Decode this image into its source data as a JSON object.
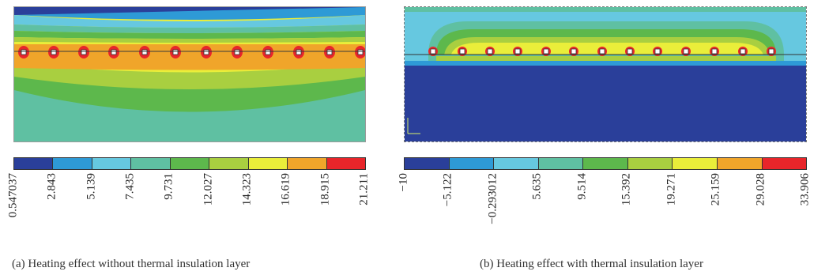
{
  "panels": {
    "a": {
      "caption": "(a)  Heating effect without thermal insulation layer",
      "colorbar_ticks": [
        "0.547037",
        "2.843",
        "5.139",
        "7.435",
        "9.731",
        "12.027",
        "14.323",
        "16.619",
        "18.915",
        "21.211"
      ],
      "colorbar_colors": [
        "#2a3f9a",
        "#2e9ad6",
        "#66c8e0",
        "#5fc0a2",
        "#5db84c",
        "#a9cf40",
        "#eaee3a",
        "#f0a52a",
        "#e8252a"
      ]
    },
    "b": {
      "caption": "(b)  Heating effect with thermal insulation layer",
      "colorbar_ticks": [
        "−10",
        "−5.122",
        "−0.293012",
        "5.635",
        "9.514",
        "15.392",
        "19.271",
        "25.159",
        "29.028",
        "33.906"
      ],
      "colorbar_colors": [
        "#2a3f9a",
        "#2e9ad6",
        "#66c8e0",
        "#5fc0a2",
        "#5db84c",
        "#a9cf40",
        "#eaee3a",
        "#f0a52a",
        "#e8252a"
      ],
      "axis_tag": "Y\nx"
    }
  }
}
